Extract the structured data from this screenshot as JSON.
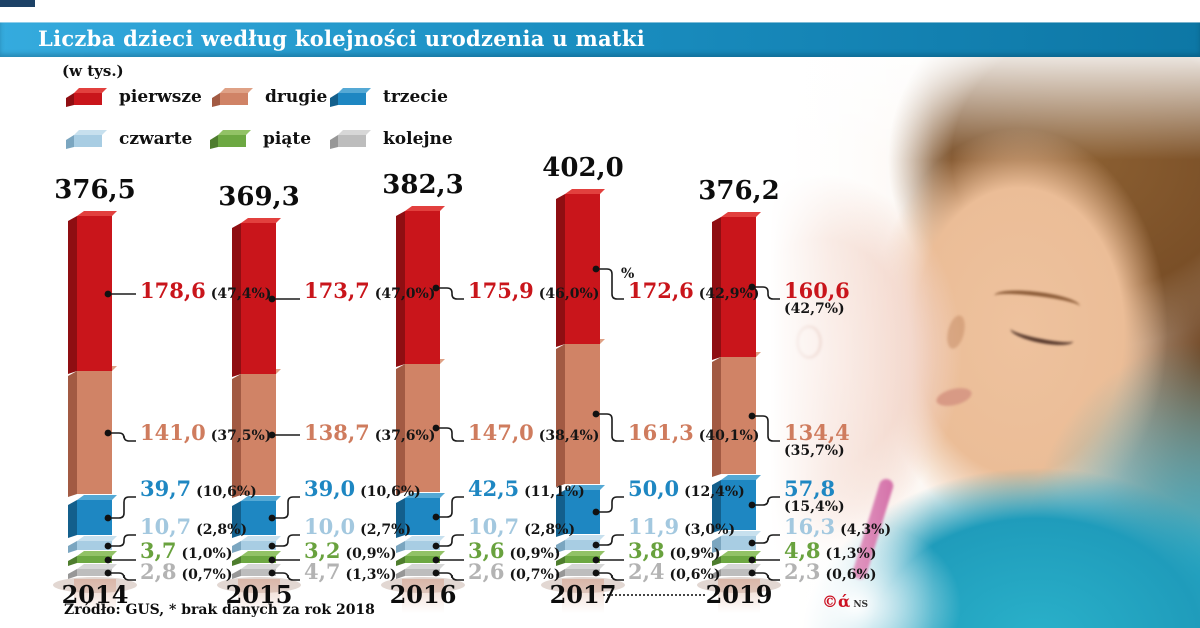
{
  "header": {
    "title": "Liczba dzieci według kolejności urodzenia u matki"
  },
  "legend": {
    "unit_label": "(w tys.)"
  },
  "chart_data": {
    "type": "bar",
    "stacked": true,
    "unit": "w tys.",
    "title": "Liczba dzieci według kolejności urodzenia u matki",
    "categories": [
      "2014",
      "2015",
      "2016",
      "2017",
      "2019"
    ],
    "totals": [
      376.5,
      369.3,
      382.3,
      402.0,
      376.2
    ],
    "pct_symbol": "%",
    "series": [
      {
        "name": "pierwsze",
        "values": [
          178.6,
          173.7,
          175.9,
          172.6,
          160.6
        ],
        "pcts": [
          "(47,4%)",
          "(47,0%)",
          "(46,0%)",
          "(42,9%)",
          "(42,7%)"
        ],
        "color_front": "#c9151b",
        "color_side": "#8f0e12",
        "color_top": "#e2403e",
        "color_label": "#c9151b"
      },
      {
        "name": "drugie",
        "values": [
          141.0,
          138.7,
          147.0,
          161.3,
          134.4
        ],
        "pcts": [
          "(37,5%)",
          "(37,6%)",
          "(38,4%)",
          "(40,1%)",
          "(35,7%)"
        ],
        "color_front": "#d08366",
        "color_side": "#a25a43",
        "color_top": "#dfa186",
        "color_label": "#cf7c5e"
      },
      {
        "name": "trzecie",
        "values": [
          39.7,
          39.0,
          42.5,
          50.0,
          57.8
        ],
        "pcts": [
          "(10,6%)",
          "(10,6%)",
          "(11,1%)",
          "(12,4%)",
          "(15,4%)"
        ],
        "color_front": "#1e87c2",
        "color_side": "#135f8c",
        "color_top": "#55a9d5",
        "color_label": "#1e87c2"
      },
      {
        "name": "czwarte",
        "values": [
          10.7,
          10.0,
          10.7,
          11.9,
          16.3
        ],
        "pcts": [
          "(2,8%)",
          "(2,7%)",
          "(2,8%)",
          "(3,0%)",
          "(4,3%)"
        ],
        "color_front": "#a8cde3",
        "color_side": "#7ba6c0",
        "color_top": "#c7e0ee",
        "color_label": "#a3c8df"
      },
      {
        "name": "piąte",
        "values": [
          3.7,
          3.2,
          3.6,
          3.8,
          4.8
        ],
        "pcts": [
          "(1,0%)",
          "(0,9%)",
          "(0,9%)",
          "(0,9%)",
          "(1,3%)"
        ],
        "color_front": "#6da842",
        "color_side": "#4e7d2e",
        "color_top": "#92c266",
        "color_label": "#69a23e"
      },
      {
        "name": "kolejne",
        "values": [
          2.8,
          4.7,
          2.6,
          2.4,
          2.3
        ],
        "pcts": [
          "(0,7%)",
          "(1,3%)",
          "(0,7%)",
          "(0,6%)",
          "(0,6%)"
        ],
        "color_front": "#bdbdbd",
        "color_side": "#979797",
        "color_top": "#d7d7d7",
        "color_label": "#b3b3b3"
      }
    ]
  },
  "footer": {
    "source": "Źródło: GUS, * brak danych za rok 2018"
  },
  "watermark": {
    "copyright": "©ά",
    "initials": "NS"
  }
}
